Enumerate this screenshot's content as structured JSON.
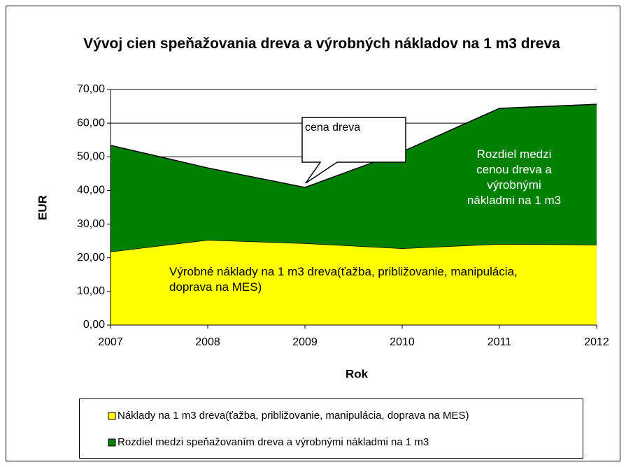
{
  "chart_data": {
    "type": "stacked_area",
    "title": "Vývoj cien speňažovania dreva  a výrobných nákladov na 1 m3 dreva",
    "x_label": "Rok",
    "y_label": "EUR",
    "categories": [
      "2007",
      "2008",
      "2009",
      "2010",
      "2011",
      "2012"
    ],
    "series": [
      {
        "name": "Náklady na 1 m3 dreva(ťažba, približovanie, manipulácia, doprava na MES)",
        "color": "#ffff00",
        "values": [
          21.8,
          25.3,
          24.3,
          22.8,
          24.1,
          23.9
        ]
      },
      {
        "name": "Rozdiel medzi speňažovaním dreva a výrobnými nákladmi na 1 m3",
        "color": "#008000",
        "values": [
          31.6,
          21.4,
          16.6,
          28.7,
          40.3,
          41.7
        ]
      }
    ],
    "ylim": [
      0,
      70
    ],
    "yticks": [
      {
        "value": 0,
        "label": "0,00"
      },
      {
        "value": 10,
        "label": "10,00"
      },
      {
        "value": 20,
        "label": "20,00"
      },
      {
        "value": 30,
        "label": "30,00"
      },
      {
        "value": 40,
        "label": "40,00"
      },
      {
        "value": 50,
        "label": "50,00"
      },
      {
        "value": 60,
        "label": "60,00"
      },
      {
        "value": 70,
        "label": "70,00"
      }
    ],
    "grid": true,
    "annotations": [
      "cena dreva",
      "Rozdiel medzi cenou dreva a výrobnými nákladmi na 1 m3",
      "Výrobné náklady na 1 m3 dreva(ťažba, približovanie, manipulácia, doprava na MES)"
    ]
  }
}
